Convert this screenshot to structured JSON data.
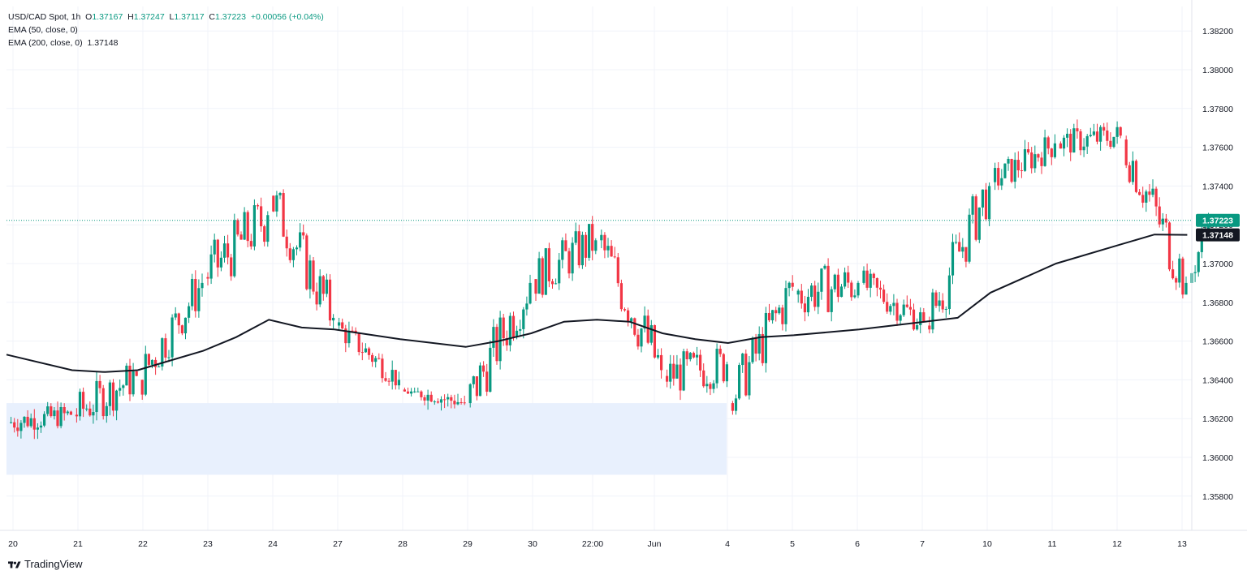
{
  "header": {
    "symbol": "USD/CAD Spot",
    "interval": "1h",
    "ohlc": [
      {
        "k": "O",
        "v": "1.37167"
      },
      {
        "k": "H",
        "v": "1.37247"
      },
      {
        "k": "L",
        "v": "1.37117"
      },
      {
        "k": "C",
        "v": "1.37223"
      }
    ],
    "change": "+0.00056 (+0.04%)",
    "ema50_label": "EMA (50, close, 0)",
    "ema200_label": "EMA (200, close, 0)",
    "ema200_value": "1.37148"
  },
  "brand": "TradingView",
  "colors": {
    "up": "#089981",
    "down": "#f23645",
    "ema": "#131722",
    "zone": "#e8f0fd",
    "grid": "#f0f3fa",
    "axis_text": "#131722"
  },
  "chart_data": {
    "type": "candlestick",
    "title": "USD/CAD Spot",
    "y_ticks": [
      "1.35800",
      "1.36000",
      "1.36200",
      "1.36400",
      "1.36600",
      "1.36800",
      "1.37000",
      "1.37200",
      "1.37400",
      "1.37600",
      "1.37800",
      "1.38000",
      "1.38200"
    ],
    "x_ticks": [
      "20",
      "21",
      "22",
      "23",
      "24",
      "27",
      "28",
      "29",
      "30",
      "22:00",
      "Jun",
      "4",
      "5",
      "6",
      "7",
      "10",
      "11",
      "12",
      "13"
    ],
    "last_price": "1.37223",
    "ema200_price": "1.37148",
    "demand_zone": {
      "y_low": 1.3591,
      "y_high": 1.3628,
      "from_session": 0,
      "to_session": 11
    },
    "sessions": [
      {
        "label": "20",
        "o": 1.3618,
        "c": 1.3622,
        "h": 1.3636,
        "l": 1.3602
      },
      {
        "label": "21",
        "o": 1.3622,
        "c": 1.3642,
        "h": 1.3676,
        "l": 1.3615
      },
      {
        "label": "22",
        "o": 1.364,
        "c": 1.369,
        "h": 1.3698,
        "l": 1.3628
      },
      {
        "label": "23",
        "o": 1.3693,
        "c": 1.3725,
        "h": 1.3744,
        "l": 1.3661
      },
      {
        "label": "24",
        "o": 1.3735,
        "c": 1.3672,
        "h": 1.3741,
        "l": 1.366
      },
      {
        "label": "27",
        "o": 1.3668,
        "c": 1.364,
        "h": 1.3672,
        "l": 1.3635
      },
      {
        "label": "28",
        "o": 1.3635,
        "c": 1.3628,
        "h": 1.3636,
        "l": 1.3616
      },
      {
        "label": "29",
        "o": 1.3628,
        "c": 1.369,
        "h": 1.3705,
        "l": 1.3624
      },
      {
        "label": "30",
        "o": 1.3692,
        "c": 1.3712,
        "h": 1.3735,
        "l": 1.3668
      },
      {
        "label": "22:00",
        "o": 1.3712,
        "c": 1.3645,
        "h": 1.3718,
        "l": 1.363
      },
      {
        "label": "Jun",
        "o": 1.3642,
        "c": 1.3648,
        "h": 1.3668,
        "l": 1.3604
      },
      {
        "label": "4",
        "o": 1.3628,
        "c": 1.3688,
        "h": 1.37,
        "l": 1.3622
      },
      {
        "label": "5",
        "o": 1.3684,
        "c": 1.369,
        "h": 1.3742,
        "l": 1.367
      },
      {
        "label": "6",
        "o": 1.369,
        "c": 1.367,
        "h": 1.371,
        "l": 1.3664
      },
      {
        "label": "7",
        "o": 1.3668,
        "c": 1.374,
        "h": 1.3748,
        "l": 1.3664
      },
      {
        "label": "10",
        "o": 1.3742,
        "c": 1.3762,
        "h": 1.3782,
        "l": 1.3738
      },
      {
        "label": "11",
        "o": 1.3762,
        "c": 1.3766,
        "h": 1.3792,
        "l": 1.3752
      },
      {
        "label": "12",
        "o": 1.3764,
        "c": 1.369,
        "h": 1.3766,
        "l": 1.3682
      },
      {
        "label": "13",
        "o": 1.369,
        "c": 1.37223,
        "h": 1.3731,
        "l": 1.3683
      }
    ],
    "ema200": [
      {
        "x": 0,
        "y": 1.3653
      },
      {
        "x": 1,
        "y": 1.3645
      },
      {
        "x": 1.5,
        "y": 1.3644
      },
      {
        "x": 2,
        "y": 1.3645
      },
      {
        "x": 2.5,
        "y": 1.365
      },
      {
        "x": 3,
        "y": 1.3655
      },
      {
        "x": 3.5,
        "y": 1.3662
      },
      {
        "x": 4,
        "y": 1.3671
      },
      {
        "x": 4.5,
        "y": 1.3667
      },
      {
        "x": 5,
        "y": 1.3666
      },
      {
        "x": 6,
        "y": 1.3661
      },
      {
        "x": 7,
        "y": 1.3657
      },
      {
        "x": 7.5,
        "y": 1.366
      },
      {
        "x": 8,
        "y": 1.3664
      },
      {
        "x": 8.5,
        "y": 1.367
      },
      {
        "x": 9,
        "y": 1.3671
      },
      {
        "x": 9.5,
        "y": 1.367
      },
      {
        "x": 10,
        "y": 1.3664
      },
      {
        "x": 10.5,
        "y": 1.3661
      },
      {
        "x": 11,
        "y": 1.3659
      },
      {
        "x": 11.5,
        "y": 1.3662
      },
      {
        "x": 12,
        "y": 1.3663
      },
      {
        "x": 13,
        "y": 1.3666
      },
      {
        "x": 14,
        "y": 1.367
      },
      {
        "x": 14.5,
        "y": 1.3672
      },
      {
        "x": 15,
        "y": 1.3685
      },
      {
        "x": 16,
        "y": 1.37
      },
      {
        "x": 17,
        "y": 1.371
      },
      {
        "x": 17.5,
        "y": 1.3715
      },
      {
        "x": 18,
        "y": 1.37148
      }
    ]
  }
}
